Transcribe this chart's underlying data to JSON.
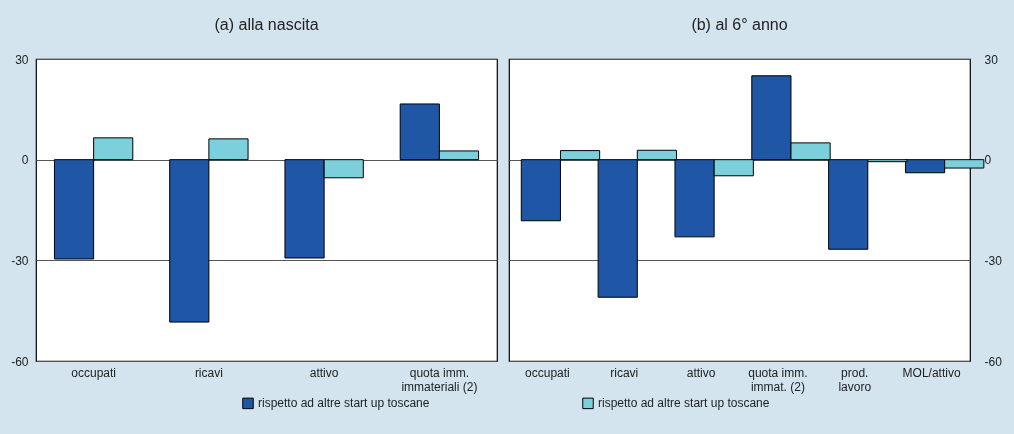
{
  "chart_data": [
    {
      "type": "bar",
      "title": "(a) alla nascita",
      "categories": [
        "occupati",
        "ricavi",
        "attivo",
        "quota imm.\nimmateriali (2)"
      ],
      "series": [
        {
          "name": "rispetto ad altre start up toscane",
          "color": "#1f56a5",
          "values": [
            -29.6,
            -48.4,
            -29.3,
            16.6
          ]
        },
        {
          "name": "rispetto ad altre start up toscane",
          "color": "#7bd0dc",
          "values": [
            6.5,
            6.2,
            -5.4,
            2.6
          ]
        }
      ],
      "ylim": [
        -60,
        30
      ],
      "yticks": [
        -60,
        -30,
        0,
        30
      ],
      "grid": "y",
      "legend": "bottom"
    },
    {
      "type": "bar",
      "title": "(b) al 6° anno",
      "categories": [
        "occupati",
        "ricavi",
        "attivo",
        "quota imm.\nimmat. (2)",
        "prod.\nlavoro",
        "MOL/attivo"
      ],
      "series": [
        {
          "color": "#1f56a5",
          "values": [
            -18.2,
            -41,
            -23,
            25,
            -26.7,
            -3.9
          ]
        },
        {
          "color": "#7bd0dc",
          "values": [
            2.7,
            2.8,
            -4.8,
            5,
            -0.6,
            -2.5
          ]
        }
      ],
      "ylim": [
        -60,
        30
      ],
      "yticks": [
        -60,
        -30,
        0,
        30
      ],
      "grid": "y"
    }
  ]
}
